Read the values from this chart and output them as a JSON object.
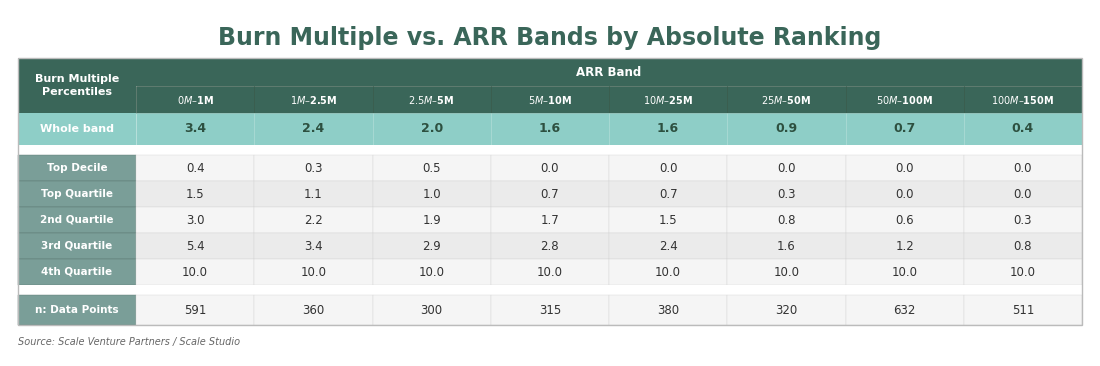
{
  "title": "Burn Multiple vs. ARR Bands by Absolute Ranking",
  "source": "Source: Scale Venture Partners / Scale Studio",
  "arr_bands": [
    "$0M – $1M",
    "$1M – $2.5M",
    "$2.5M – $5M",
    "$5M – $10M",
    "$10M – $25M",
    "$25M – $50M",
    "$50M – $100M",
    "$100M – $150M"
  ],
  "arr_band_header": "ARR Band",
  "whole_band_label": "Whole band",
  "whole_band_values": [
    "3.4",
    "2.4",
    "2.0",
    "1.6",
    "1.6",
    "0.9",
    "0.7",
    "0.4"
  ],
  "quartile_rows": [
    {
      "label": "Top Decile",
      "values": [
        "0.4",
        "0.3",
        "0.5",
        "0.0",
        "0.0",
        "0.0",
        "0.0",
        "0.0"
      ]
    },
    {
      "label": "Top Quartile",
      "values": [
        "1.5",
        "1.1",
        "1.0",
        "0.7",
        "0.7",
        "0.3",
        "0.0",
        "0.0"
      ]
    },
    {
      "label": "2nd Quartile",
      "values": [
        "3.0",
        "2.2",
        "1.9",
        "1.7",
        "1.5",
        "0.8",
        "0.6",
        "0.3"
      ]
    },
    {
      "label": "3rd Quartile",
      "values": [
        "5.4",
        "3.4",
        "2.9",
        "2.8",
        "2.4",
        "1.6",
        "1.2",
        "0.8"
      ]
    },
    {
      "label": "4th Quartile",
      "values": [
        "10.0",
        "10.0",
        "10.0",
        "10.0",
        "10.0",
        "10.0",
        "10.0",
        "10.0"
      ]
    }
  ],
  "n_label": "n: Data Points",
  "n_values": [
    "591",
    "360",
    "300",
    "315",
    "380",
    "320",
    "632",
    "511"
  ],
  "color_header_dark": "#3a6659",
  "color_header_medium": "#3a6659",
  "color_whole_band": "#8ecec7",
  "color_quartile_label_bg": "#7a9e98",
  "color_n_label_bg": "#7a9e98",
  "color_white": "#ffffff",
  "color_light_bg": "#f5f5f5",
  "color_alt_row": "#ebebeb",
  "color_body_text": "#333333",
  "title_color": "#3a6659",
  "source_color": "#666666",
  "border_color": "#bbbbbb"
}
